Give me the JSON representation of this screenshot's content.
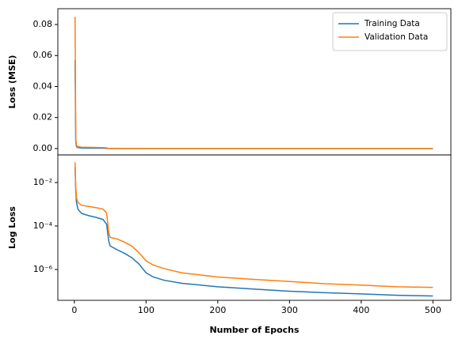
{
  "chart_data": [
    {
      "type": "line",
      "ylabel": "Loss (MSE)",
      "yscale": "linear",
      "legend": "upper right",
      "x": [
        1,
        2,
        3,
        5,
        10,
        20,
        30,
        40,
        45,
        48,
        50,
        60,
        70,
        80,
        90,
        100,
        110,
        125,
        150,
        200,
        250,
        300,
        350,
        400,
        450,
        500
      ],
      "series": [
        {
          "name": "Training Data",
          "color": "#1f77b4",
          "values": [
            0.057,
            0.004,
            0.0012,
            0.0006,
            0.00038,
            0.0003,
            0.00025,
            0.0002,
            0.00012,
            2e-05,
            1.2e-05,
            8e-06,
            5.5e-06,
            3.5e-06,
            1.8e-06,
            7e-07,
            4.5e-07,
            3.2e-07,
            2.3e-07,
            1.6e-07,
            1.25e-07,
            1e-07,
            8.5e-08,
            7.5e-08,
            6.5e-08,
            6e-08
          ]
        },
        {
          "name": "Validation Data",
          "color": "#ff7f0e",
          "values": [
            0.085,
            0.006,
            0.002,
            0.0012,
            0.0009,
            0.0008,
            0.0007,
            0.0006,
            0.0004,
            5e-05,
            3e-05,
            2.5e-05,
            1.8e-05,
            1.2e-05,
            6e-06,
            2.5e-06,
            1.6e-06,
            1.1e-06,
            7e-07,
            4.5e-07,
            3.5e-07,
            2.8e-07,
            2.2e-07,
            1.9e-07,
            1.6e-07,
            1.5e-07
          ]
        }
      ],
      "xlim": [
        -23,
        525
      ],
      "ylim": [
        -0.0041,
        0.0902
      ],
      "yticks": [
        {
          "value": 0,
          "label": "0.00"
        },
        {
          "value": 0.02,
          "label": "0.02"
        },
        {
          "value": 0.04,
          "label": "0.04"
        },
        {
          "value": 0.06,
          "label": "0.06"
        },
        {
          "value": 0.08,
          "label": "0.08"
        }
      ]
    },
    {
      "type": "line",
      "ylabel": "Log Loss",
      "xlabel": "Number of Epochs",
      "yscale": "log",
      "x": [
        1,
        2,
        3,
        5,
        10,
        20,
        30,
        40,
        45,
        48,
        50,
        60,
        70,
        80,
        90,
        100,
        110,
        125,
        150,
        200,
        250,
        300,
        350,
        400,
        450,
        500
      ],
      "series": [
        {
          "name": "Training Data",
          "color": "#1f77b4",
          "values": [
            0.057,
            0.004,
            0.0012,
            0.0006,
            0.00038,
            0.0003,
            0.00025,
            0.0002,
            0.00012,
            2e-05,
            1.2e-05,
            8e-06,
            5.5e-06,
            3.5e-06,
            1.8e-06,
            7e-07,
            4.5e-07,
            3.2e-07,
            2.3e-07,
            1.6e-07,
            1.25e-07,
            1e-07,
            8.5e-08,
            7.5e-08,
            6.5e-08,
            6e-08
          ]
        },
        {
          "name": "Validation Data",
          "color": "#ff7f0e",
          "values": [
            0.085,
            0.006,
            0.002,
            0.0012,
            0.0009,
            0.0008,
            0.0007,
            0.0006,
            0.0004,
            5e-05,
            3e-05,
            2.5e-05,
            1.8e-05,
            1.2e-05,
            6e-06,
            2.5e-06,
            1.6e-06,
            1.1e-06,
            7e-07,
            4.5e-07,
            3.5e-07,
            2.8e-07,
            2.2e-07,
            1.9e-07,
            1.6e-07,
            1.5e-07
          ]
        }
      ],
      "xlim": [
        -23,
        525
      ],
      "ylim": [
        3.8e-08,
        0.187
      ],
      "xticks": [
        0,
        100,
        200,
        300,
        400,
        500
      ],
      "yticks": [
        {
          "value": 0.01,
          "label": "10⁻²"
        },
        {
          "value": 0.0001,
          "label": "10⁻⁴"
        },
        {
          "value": 1e-06,
          "label": "10⁻⁶"
        }
      ]
    }
  ]
}
